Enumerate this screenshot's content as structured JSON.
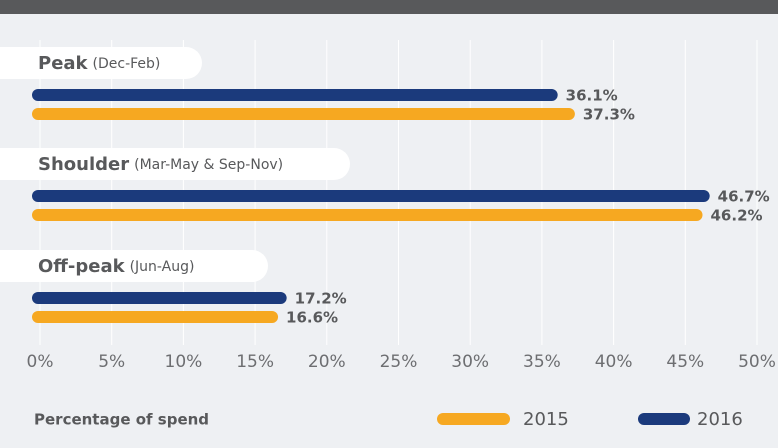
{
  "chart_data": {
    "type": "bar",
    "orientation": "horizontal",
    "categories": [
      "Peak",
      "Shoulder",
      "Off-peak"
    ],
    "category_notes": [
      "(Dec-Feb)",
      "(Mar-May & Sep-Nov)",
      "(Jun-Aug)"
    ],
    "series": [
      {
        "name": "2015",
        "color": "#f6a821",
        "values": [
          37.3,
          46.2,
          16.6
        ],
        "value_labels": [
          "37.3%",
          "46.2%",
          "16.6%"
        ]
      },
      {
        "name": "2016",
        "color": "#1b3a7c",
        "values": [
          36.1,
          46.7,
          17.2
        ],
        "value_labels": [
          "36.1%",
          "46.7%",
          "17.2%"
        ]
      }
    ],
    "xlabel": "Percentage of spend",
    "xlim": [
      0,
      50
    ],
    "xticks": [
      {
        "value": 0,
        "label": "0%"
      },
      {
        "value": 5,
        "label": "5%"
      },
      {
        "value": 10,
        "label": "10%"
      },
      {
        "value": 15,
        "label": "15%"
      },
      {
        "value": 20,
        "label": "20%"
      },
      {
        "value": 25,
        "label": "25%"
      },
      {
        "value": 30,
        "label": "30%"
      },
      {
        "value": 35,
        "label": "35%"
      },
      {
        "value": 40,
        "label": "40%"
      },
      {
        "value": 45,
        "label": "45%"
      },
      {
        "value": 50,
        "label": "50%"
      }
    ],
    "grid": true,
    "legend": "bottom-right"
  }
}
